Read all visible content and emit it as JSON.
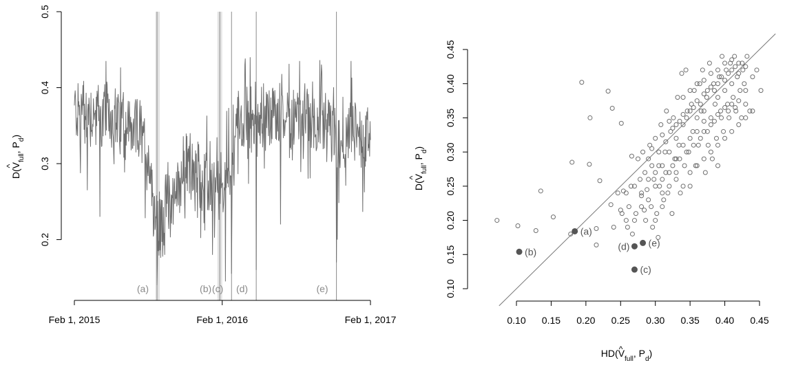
{
  "chart_data": [
    {
      "type": "line",
      "xlabel": "",
      "ylabel_parts": [
        "D(",
        "V",
        "full",
        ", P",
        "d",
        ")"
      ],
      "ylabel_hat": "^",
      "ylim": [
        0.12,
        0.5
      ],
      "yticks": [
        0.2,
        0.3,
        0.4,
        0.5
      ],
      "ytick_labels": [
        "0.2",
        "0.3",
        "0.4",
        "0.5"
      ],
      "xlim_dates": [
        "2015-02-01",
        "2017-02-01"
      ],
      "xticks": [
        {
          "date": "2015-02-01",
          "label": "Feb 1, 2015"
        },
        {
          "date": "2016-02-01",
          "label": "Feb 1, 2016"
        },
        {
          "date": "2017-02-01",
          "label": "Feb 1, 2017"
        }
      ],
      "shaded_ranges": [
        {
          "start": "2015-08-20",
          "end": "2015-08-31"
        },
        {
          "start": "2016-01-20",
          "end": "2016-02-01"
        }
      ],
      "vlines": [
        {
          "date": "2015-08-24",
          "label": "(a)"
        },
        {
          "date": "2016-01-26",
          "label": "(b)"
        },
        {
          "date": "2016-02-24",
          "label": "(c)"
        },
        {
          "date": "2016-04-25",
          "label": "(d)"
        },
        {
          "date": "2016-11-09",
          "label": "(e)"
        }
      ],
      "series": [
        {
          "color": "#6e6e6e",
          "segments": [
            {
              "date": "2015-02-01",
              "level": 0.37
            },
            {
              "date": "2015-05-01",
              "level": 0.36
            },
            {
              "date": "2015-07-15",
              "level": 0.34
            },
            {
              "date": "2015-08-10",
              "level": 0.29
            },
            {
              "date": "2015-08-25",
              "level": 0.215
            },
            {
              "date": "2015-09-20",
              "level": 0.24
            },
            {
              "date": "2015-10-20",
              "level": 0.28
            },
            {
              "date": "2015-11-20",
              "level": 0.3
            },
            {
              "date": "2015-12-20",
              "level": 0.27
            },
            {
              "date": "2016-01-25",
              "level": 0.26
            },
            {
              "date": "2016-02-20",
              "level": 0.3
            },
            {
              "date": "2016-03-15",
              "level": 0.36
            },
            {
              "date": "2016-06-01",
              "level": 0.36
            },
            {
              "date": "2016-09-01",
              "level": 0.355
            },
            {
              "date": "2016-11-01",
              "level": 0.34
            },
            {
              "date": "2016-11-20",
              "level": 0.3
            },
            {
              "date": "2016-12-20",
              "level": 0.34
            },
            {
              "date": "2017-02-01",
              "level": 0.33
            }
          ],
          "amplitude": 0.04,
          "spikes": [
            {
              "date": "2015-08-25",
              "value": 0.168
            },
            {
              "date": "2015-08-27",
              "value": 0.185
            },
            {
              "date": "2016-02-09",
              "value": 0.145
            },
            {
              "date": "2016-02-24",
              "value": 0.155
            },
            {
              "date": "2016-04-25",
              "value": 0.16
            },
            {
              "date": "2016-06-24",
              "value": 0.22
            },
            {
              "date": "2016-11-09",
              "value": 0.17
            },
            {
              "date": "2016-11-11",
              "value": 0.2
            },
            {
              "date": "2015-03-05",
              "value": 0.265
            },
            {
              "date": "2015-04-05",
              "value": 0.23
            },
            {
              "date": "2016-01-08",
              "value": 0.18
            },
            {
              "date": "2016-08-10",
              "value": 0.435
            },
            {
              "date": "2016-12-15",
              "value": 0.435
            },
            {
              "date": "2015-04-20",
              "value": 0.435
            },
            {
              "date": "2016-04-10",
              "value": 0.44
            }
          ]
        }
      ]
    },
    {
      "type": "scatter",
      "xlabel_parts": [
        "HD(",
        "V",
        "full",
        ", P",
        "d",
        ")"
      ],
      "ylabel_parts": [
        "D(",
        "V",
        "full",
        ", P",
        "d",
        ")"
      ],
      "label_hat": "^",
      "xlim": [
        0.065,
        0.455
      ],
      "ylim": [
        0.1,
        0.475
      ],
      "xticks": [
        0.1,
        0.15,
        0.2,
        0.25,
        0.3,
        0.35,
        0.4,
        0.45
      ],
      "xtick_labels": [
        "0.10",
        "0.15",
        "0.20",
        "0.25",
        "0.30",
        "0.35",
        "0.40",
        "0.45"
      ],
      "yticks": [
        0.1,
        0.15,
        0.2,
        0.25,
        0.3,
        0.35,
        0.4,
        0.45
      ],
      "ytick_labels": [
        "0.10",
        "0.15",
        "0.20",
        "0.25",
        "0.30",
        "0.35",
        "0.40",
        "0.45"
      ],
      "reference_line": {
        "slope": 1,
        "intercept": 0
      },
      "point_color": "#6e6e6e",
      "open_points": [
        [
          0.072,
          0.2
        ],
        [
          0.102,
          0.192
        ],
        [
          0.128,
          0.185
        ],
        [
          0.135,
          0.243
        ],
        [
          0.153,
          0.205
        ],
        [
          0.178,
          0.18
        ],
        [
          0.18,
          0.285
        ],
        [
          0.194,
          0.402
        ],
        [
          0.205,
          0.282
        ],
        [
          0.206,
          0.35
        ],
        [
          0.215,
          0.188
        ],
        [
          0.215,
          0.164
        ],
        [
          0.22,
          0.258
        ],
        [
          0.232,
          0.389
        ],
        [
          0.236,
          0.223
        ],
        [
          0.238,
          0.364
        ],
        [
          0.24,
          0.19
        ],
        [
          0.246,
          0.24
        ],
        [
          0.251,
          0.342
        ],
        [
          0.252,
          0.21
        ],
        [
          0.254,
          0.243
        ],
        [
          0.258,
          0.24
        ],
        [
          0.258,
          0.2
        ],
        [
          0.262,
          0.22
        ],
        [
          0.265,
          0.25
        ],
        [
          0.266,
          0.294
        ],
        [
          0.267,
          0.18
        ],
        [
          0.27,
          0.25
        ],
        [
          0.272,
          0.21
        ],
        [
          0.275,
          0.29
        ],
        [
          0.278,
          0.26
        ],
        [
          0.28,
          0.236
        ],
        [
          0.282,
          0.3
        ],
        [
          0.284,
          0.215
        ],
        [
          0.286,
          0.2
        ],
        [
          0.288,
          0.245
        ],
        [
          0.29,
          0.29
        ],
        [
          0.292,
          0.31
        ],
        [
          0.294,
          0.22
        ],
        [
          0.296,
          0.19
        ],
        [
          0.298,
          0.26
        ],
        [
          0.3,
          0.32
        ],
        [
          0.302,
          0.21
        ],
        [
          0.304,
          0.175
        ],
        [
          0.306,
          0.25
        ],
        [
          0.308,
          0.34
        ],
        [
          0.31,
          0.28
        ],
        [
          0.312,
          0.23
        ],
        [
          0.314,
          0.3
        ],
        [
          0.316,
          0.36
        ],
        [
          0.318,
          0.24
        ],
        [
          0.32,
          0.27
        ],
        [
          0.322,
          0.33
        ],
        [
          0.324,
          0.21
        ],
        [
          0.326,
          0.35
        ],
        [
          0.328,
          0.29
        ],
        [
          0.33,
          0.26
        ],
        [
          0.332,
          0.38
        ],
        [
          0.334,
          0.31
        ],
        [
          0.336,
          0.24
        ],
        [
          0.338,
          0.415
        ],
        [
          0.34,
          0.34
        ],
        [
          0.342,
          0.28
        ],
        [
          0.344,
          0.42
        ],
        [
          0.346,
          0.36
        ],
        [
          0.348,
          0.3
        ],
        [
          0.35,
          0.25
        ],
        [
          0.352,
          0.37
        ],
        [
          0.354,
          0.33
        ],
        [
          0.356,
          0.39
        ],
        [
          0.358,
          0.28
        ],
        [
          0.36,
          0.35
        ],
        [
          0.362,
          0.31
        ],
        [
          0.364,
          0.4
        ],
        [
          0.366,
          0.36
        ],
        [
          0.368,
          0.42
        ],
        [
          0.37,
          0.33
        ],
        [
          0.372,
          0.27
        ],
        [
          0.374,
          0.38
        ],
        [
          0.376,
          0.31
        ],
        [
          0.378,
          0.43
        ],
        [
          0.38,
          0.35
        ],
        [
          0.382,
          0.29
        ],
        [
          0.384,
          0.4
        ],
        [
          0.386,
          0.37
        ],
        [
          0.388,
          0.32
        ],
        [
          0.39,
          0.28
        ],
        [
          0.392,
          0.41
        ],
        [
          0.394,
          0.36
        ],
        [
          0.396,
          0.44
        ],
        [
          0.398,
          0.33
        ],
        [
          0.4,
          0.39
        ],
        [
          0.402,
          0.42
        ],
        [
          0.404,
          0.37
        ],
        [
          0.406,
          0.35
        ],
        [
          0.408,
          0.43
        ],
        [
          0.41,
          0.4
        ],
        [
          0.412,
          0.38
        ],
        [
          0.414,
          0.44
        ],
        [
          0.416,
          0.36
        ],
        [
          0.418,
          0.41
        ],
        [
          0.42,
          0.43
        ],
        [
          0.422,
          0.39
        ],
        [
          0.424,
          0.35
        ],
        [
          0.426,
          0.42
        ],
        [
          0.428,
          0.4
        ],
        [
          0.43,
          0.37
        ],
        [
          0.432,
          0.44
        ],
        [
          0.436,
          0.36
        ],
        [
          0.44,
          0.41
        ],
        [
          0.446,
          0.42
        ],
        [
          0.452,
          0.39
        ],
        [
          0.295,
          0.305
        ],
        [
          0.305,
          0.3
        ],
        [
          0.31,
          0.325
        ],
        [
          0.315,
          0.315
        ],
        [
          0.32,
          0.345
        ],
        [
          0.325,
          0.335
        ],
        [
          0.33,
          0.34
        ],
        [
          0.335,
          0.345
        ],
        [
          0.34,
          0.355
        ],
        [
          0.345,
          0.35
        ],
        [
          0.35,
          0.36
        ],
        [
          0.355,
          0.365
        ],
        [
          0.36,
          0.375
        ],
        [
          0.365,
          0.37
        ],
        [
          0.37,
          0.385
        ],
        [
          0.375,
          0.39
        ],
        [
          0.38,
          0.395
        ],
        [
          0.385,
          0.39
        ],
        [
          0.39,
          0.4
        ],
        [
          0.395,
          0.41
        ],
        [
          0.4,
          0.405
        ],
        [
          0.405,
          0.415
        ],
        [
          0.41,
          0.42
        ],
        [
          0.415,
          0.425
        ],
        [
          0.42,
          0.415
        ],
        [
          0.425,
          0.43
        ],
        [
          0.43,
          0.425
        ],
        [
          0.3,
          0.27
        ],
        [
          0.31,
          0.26
        ],
        [
          0.32,
          0.3
        ],
        [
          0.33,
          0.29
        ],
        [
          0.34,
          0.31
        ],
        [
          0.35,
          0.32
        ],
        [
          0.36,
          0.33
        ],
        [
          0.37,
          0.345
        ],
        [
          0.38,
          0.34
        ],
        [
          0.39,
          0.355
        ],
        [
          0.4,
          0.365
        ],
        [
          0.41,
          0.37
        ],
        [
          0.42,
          0.375
        ],
        [
          0.43,
          0.39
        ],
        [
          0.285,
          0.27
        ],
        [
          0.295,
          0.28
        ],
        [
          0.305,
          0.28
        ],
        [
          0.315,
          0.27
        ],
        [
          0.325,
          0.28
        ],
        [
          0.335,
          0.29
        ],
        [
          0.345,
          0.3
        ],
        [
          0.355,
          0.31
        ],
        [
          0.365,
          0.32
        ],
        [
          0.375,
          0.33
        ],
        [
          0.385,
          0.345
        ],
        [
          0.395,
          0.35
        ],
        [
          0.405,
          0.36
        ],
        [
          0.415,
          0.365
        ],
        [
          0.34,
          0.38
        ],
        [
          0.35,
          0.39
        ],
        [
          0.36,
          0.4
        ],
        [
          0.37,
          0.405
        ],
        [
          0.38,
          0.415
        ],
        [
          0.39,
          0.42
        ],
        [
          0.4,
          0.43
        ],
        [
          0.41,
          0.435
        ],
        [
          0.39,
          0.38
        ],
        [
          0.37,
          0.36
        ],
        [
          0.33,
          0.32
        ],
        [
          0.32,
          0.25
        ],
        [
          0.31,
          0.22
        ],
        [
          0.3,
          0.2
        ],
        [
          0.29,
          0.23
        ],
        [
          0.28,
          0.22
        ],
        [
          0.27,
          0.2
        ],
        [
          0.26,
          0.19
        ],
        [
          0.25,
          0.215
        ],
        [
          0.34,
          0.25
        ],
        [
          0.35,
          0.27
        ],
        [
          0.36,
          0.28
        ],
        [
          0.38,
          0.3
        ],
        [
          0.39,
          0.31
        ],
        [
          0.4,
          0.32
        ],
        [
          0.42,
          0.34
        ],
        [
          0.44,
          0.36
        ],
        [
          0.43,
          0.35
        ],
        [
          0.41,
          0.33
        ],
        [
          0.37,
          0.29
        ],
        [
          0.33,
          0.27
        ],
        [
          0.31,
          0.24
        ],
        [
          0.3,
          0.25
        ],
        [
          0.28,
          0.24
        ],
        [
          0.29,
          0.26
        ]
      ],
      "filled_points": [
        {
          "x": 0.104,
          "y": 0.154,
          "label": "(b)"
        },
        {
          "x": 0.184,
          "y": 0.184,
          "label": "(a)"
        },
        {
          "x": 0.27,
          "y": 0.128,
          "label": "(c)"
        },
        {
          "x": 0.27,
          "y": 0.162,
          "label": "(d)"
        },
        {
          "x": 0.282,
          "y": 0.167,
          "label": "(e)"
        }
      ]
    }
  ]
}
